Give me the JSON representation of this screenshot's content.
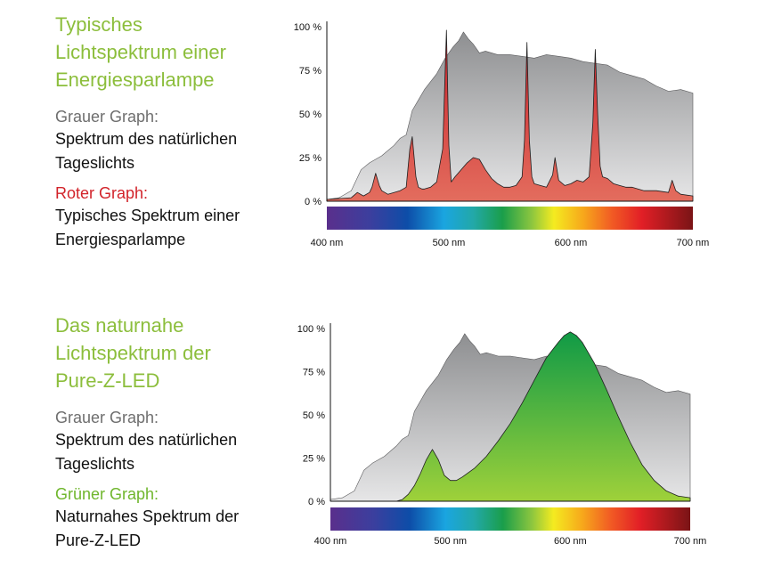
{
  "panel1": {
    "title": "Typisches\nLichtspektrum einer\nEnergiesparlampe",
    "gray_label": "Grauer Graph:",
    "gray_desc": "Spektrum des natürlichen\nTageslichts",
    "second_label": "Roter Graph:",
    "second_desc": "Typisches Spektrum einer\nEnergiesparlampe"
  },
  "panel2": {
    "title": "Das naturnahe\nLichtspektrum der\nPure-Z-LED",
    "gray_label": "Grauer Graph:",
    "gray_desc": "Spektrum des natürlichen\nTageslichts",
    "second_label": "Grüner Graph:",
    "second_desc": "Naturnahes Spektrum der\nPure-Z-LED"
  },
  "colors": {
    "title_green": "#8cbe3c",
    "gray": "#a9aaac",
    "red": "#d2232a",
    "green": "#3aa935"
  },
  "chart_data": [
    {
      "type": "area",
      "xlim": [
        400,
        700
      ],
      "ylim": [
        0,
        100
      ],
      "y_ticks": [
        "0 %",
        "25 %",
        "50 %",
        "75 %",
        "100 %"
      ],
      "x_ticks": [
        "400 nm",
        "500 nm",
        "600 nm",
        "700 nm"
      ],
      "x_tick_values": [
        400,
        500,
        600,
        700
      ],
      "series": [
        {
          "color": "#a9aaac",
          "x": [
            400,
            410,
            420,
            428,
            435,
            445,
            455,
            460,
            465,
            470,
            475,
            480,
            490,
            497,
            503,
            508,
            512,
            516,
            520,
            525,
            530,
            540,
            550,
            560,
            570,
            580,
            590,
            600,
            610,
            620,
            630,
            640,
            650,
            660,
            670,
            680,
            690,
            700
          ],
          "y": [
            1,
            2,
            6,
            18,
            22,
            26,
            32,
            36,
            38,
            52,
            58,
            64,
            73,
            82,
            88,
            92,
            97,
            93,
            90,
            85,
            86,
            84,
            84,
            83,
            82,
            84,
            83,
            82,
            80,
            79,
            78,
            74,
            72,
            70,
            66,
            63,
            64,
            62
          ]
        },
        {
          "color": "#d2232a",
          "x": [
            400,
            420,
            425,
            430,
            435,
            437,
            440,
            443,
            445,
            450,
            455,
            460,
            465,
            468,
            470,
            473,
            475,
            478,
            480,
            485,
            490,
            495,
            498,
            500,
            502,
            505,
            510,
            515,
            520,
            525,
            530,
            535,
            540,
            545,
            550,
            555,
            560,
            562,
            564,
            566,
            568,
            570,
            575,
            580,
            585,
            587,
            590,
            595,
            600,
            605,
            610,
            615,
            618,
            620,
            622,
            624,
            626,
            630,
            635,
            640,
            645,
            650,
            655,
            660,
            670,
            680,
            683,
            686,
            690,
            700
          ],
          "y": [
            1,
            2,
            5,
            3,
            5,
            8,
            16,
            9,
            6,
            4,
            5,
            6,
            8,
            30,
            37,
            14,
            8,
            7,
            7,
            8,
            11,
            30,
            98,
            32,
            11,
            14,
            18,
            22,
            25,
            24,
            18,
            13,
            10,
            8,
            8,
            9,
            14,
            35,
            91,
            35,
            14,
            10,
            9,
            8,
            15,
            25,
            12,
            9,
            10,
            12,
            11,
            14,
            45,
            87,
            50,
            20,
            14,
            13,
            10,
            9,
            8,
            8,
            7,
            6,
            6,
            5,
            12,
            6,
            4,
            3
          ]
        }
      ]
    },
    {
      "type": "area",
      "xlim": [
        400,
        700
      ],
      "ylim": [
        0,
        100
      ],
      "y_ticks": [
        "0 %",
        "25 %",
        "50 %",
        "75 %",
        "100 %"
      ],
      "x_ticks": [
        "400 nm",
        "500 nm",
        "600 nm",
        "700 nm"
      ],
      "x_tick_values": [
        400,
        500,
        600,
        700
      ],
      "series": [
        {
          "color": "#a9aaac",
          "x": [
            400,
            410,
            420,
            428,
            435,
            445,
            455,
            460,
            465,
            470,
            475,
            480,
            490,
            497,
            503,
            508,
            512,
            516,
            520,
            525,
            530,
            540,
            550,
            560,
            570,
            580,
            590,
            600,
            610,
            620,
            630,
            640,
            650,
            660,
            670,
            680,
            690,
            700
          ],
          "y": [
            1,
            2,
            6,
            18,
            22,
            26,
            32,
            36,
            38,
            52,
            58,
            64,
            73,
            82,
            88,
            92,
            97,
            93,
            90,
            85,
            86,
            84,
            84,
            83,
            82,
            84,
            83,
            82,
            80,
            79,
            78,
            74,
            72,
            70,
            66,
            63,
            64,
            62
          ]
        },
        {
          "color": "#3aa935",
          "x": [
            400,
            455,
            460,
            465,
            470,
            475,
            480,
            485,
            490,
            495,
            500,
            505,
            510,
            520,
            530,
            540,
            550,
            560,
            570,
            580,
            590,
            595,
            600,
            605,
            610,
            620,
            630,
            640,
            650,
            660,
            670,
            680,
            690,
            700
          ],
          "y": [
            0,
            0,
            1,
            4,
            9,
            16,
            24,
            30,
            24,
            15,
            12,
            12,
            14,
            19,
            26,
            35,
            45,
            57,
            70,
            83,
            92,
            96,
            98,
            96,
            92,
            80,
            65,
            49,
            34,
            21,
            12,
            6,
            3,
            2
          ]
        }
      ]
    }
  ]
}
